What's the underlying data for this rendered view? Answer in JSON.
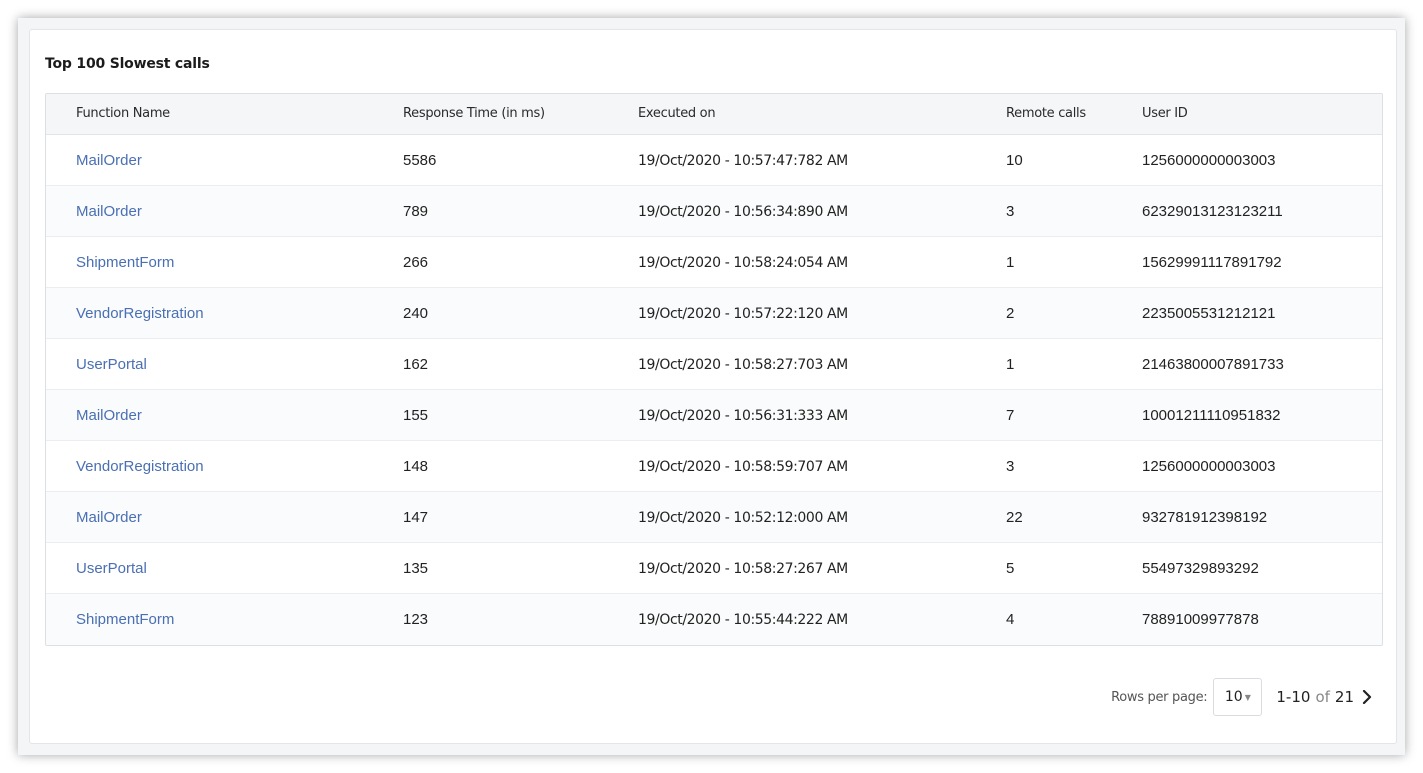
{
  "card": {
    "title": "Top 100 Slowest calls"
  },
  "table": {
    "headers": [
      "Function Name",
      "Response Time (in ms)",
      "Executed on",
      "Remote calls",
      "User ID"
    ],
    "rows": [
      [
        "MailOrder",
        "5586",
        "19/Oct/2020 - 10:57:47:782 AM",
        "10",
        "1256000000003003"
      ],
      [
        "MailOrder",
        "789",
        "19/Oct/2020 - 10:56:34:890 AM",
        "3",
        "62329013123123211"
      ],
      [
        "ShipmentForm",
        "266",
        "19/Oct/2020 - 10:58:24:054 AM",
        "1",
        "15629991117891792"
      ],
      [
        "VendorRegistration",
        "240",
        "19/Oct/2020 - 10:57:22:120 AM",
        "2",
        "2235005531212121"
      ],
      [
        "UserPortal",
        "162",
        "19/Oct/2020 - 10:58:27:703 AM",
        "1",
        "21463800007891733"
      ],
      [
        "MailOrder",
        "155",
        "19/Oct/2020 - 10:56:31:333 AM",
        "7",
        "10001211110951832"
      ],
      [
        "VendorRegistration",
        "148",
        "19/Oct/2020 - 10:58:59:707 AM",
        "3",
        "1256000000003003"
      ],
      [
        "MailOrder",
        "147",
        "19/Oct/2020 - 10:52:12:000 AM",
        "22",
        "932781912398192"
      ],
      [
        "UserPortal",
        "135",
        "19/Oct/2020 - 10:58:27:267 AM",
        "5",
        "55497329893292"
      ],
      [
        "ShipmentForm",
        "123",
        "19/Oct/2020 - 10:55:44:222 AM",
        "4",
        "78891009977878"
      ]
    ]
  },
  "pagination": {
    "rows_per_page_label": "Rows per page:",
    "rows_per_page_value": "10",
    "range": "1-10",
    "of_label": "of",
    "total": "21",
    "next_icon": "chevron-right-icon"
  },
  "colors": {
    "link": "#4a6fb3",
    "header_bg": "#f5f6f8"
  }
}
